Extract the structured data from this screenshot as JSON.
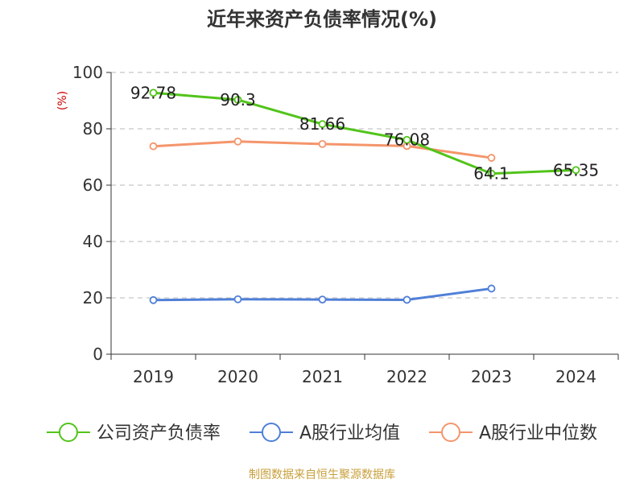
{
  "page": {
    "title": "近年来资产负债率情况(%)",
    "source_note": "制图数据来自恒生聚源数据库"
  },
  "chart_data": {
    "type": "line",
    "title": "近年来资产负债率情况(%)",
    "ylabel": "(%)",
    "xlabel": "",
    "ylim": [
      0,
      100
    ],
    "yticks": [
      0,
      20,
      40,
      60,
      80,
      100
    ],
    "categories": [
      "2019",
      "2020",
      "2021",
      "2022",
      "2023",
      "2024"
    ],
    "grid": true,
    "legend_position": "bottom",
    "series": [
      {
        "name": "公司资产负债率",
        "color": "#52c41a",
        "values": [
          92.78,
          90.3,
          81.66,
          76.08,
          64.1,
          65.35
        ],
        "labels": [
          "92.78",
          "90.3",
          "81.66",
          "76.08",
          "64.1",
          "65.35"
        ]
      },
      {
        "name": "A股行业均值",
        "color": "#4f7fd8",
        "values": [
          19.2,
          19.5,
          19.4,
          19.3,
          23.3,
          null
        ],
        "labels": null
      },
      {
        "name": "A股行业中位数",
        "color": "#f4956b",
        "values": [
          73.8,
          75.5,
          74.6,
          73.9,
          69.7,
          null
        ],
        "labels": null
      }
    ]
  }
}
